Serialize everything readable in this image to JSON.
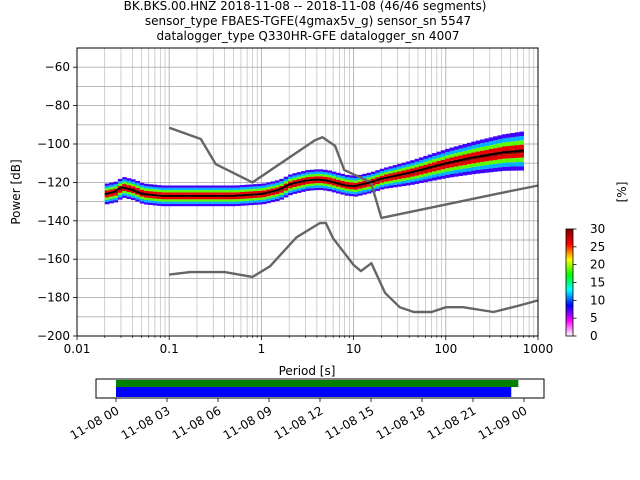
{
  "chart_data": {
    "type": "heatmap",
    "title": [
      "BK.BKS.00.HNZ   2018-11-08 -- 2018-11-08  (46/46 segments)",
      "sensor_type FBAES-TGFE(4gmax5v_g) sensor_sn 5547",
      "datalogger_type Q330HR-GFE datalogger_sn 4007"
    ],
    "xlabel": "Period [s]",
    "ylabel": "Power [dB]",
    "xscale": "log",
    "xlim": [
      0.01,
      1000
    ],
    "ylim": [
      -200,
      -50
    ],
    "grid": true,
    "x_ticks": [
      "0.01",
      "0.1",
      "1",
      "10",
      "100",
      "1000"
    ],
    "y_ticks": [
      "−60",
      "−80",
      "−100",
      "−120",
      "−140",
      "−160",
      "−180",
      "−200"
    ],
    "colorbar": {
      "label": "[%]",
      "min": 0,
      "max": 30,
      "ticks": [
        "0",
        "5",
        "10",
        "15",
        "20",
        "25",
        "30"
      ]
    },
    "noise_models": [
      {
        "kind": "high",
        "points": [
          [
            0.1,
            -91.5
          ],
          [
            0.22,
            -97.4
          ],
          [
            0.32,
            -110.5
          ],
          [
            0.8,
            -120
          ],
          [
            3.8,
            -98
          ],
          [
            4.6,
            -96.5
          ],
          [
            6.3,
            -101
          ],
          [
            7.9,
            -113.5
          ],
          [
            15.4,
            -120
          ],
          [
            20,
            -138.5
          ],
          [
            354.8,
            -126
          ],
          [
            10000,
            -112
          ]
        ]
      },
      {
        "kind": "low",
        "points": [
          [
            0.1,
            -168
          ],
          [
            0.17,
            -166.7
          ],
          [
            0.4,
            -166.7
          ],
          [
            0.8,
            -169.2
          ],
          [
            1.24,
            -163.7
          ],
          [
            2.4,
            -148.6
          ],
          [
            4.3,
            -141.2
          ],
          [
            5.0,
            -141.1
          ],
          [
            6.0,
            -149.1
          ],
          [
            10.0,
            -163.0
          ],
          [
            12.0,
            -166.2
          ],
          [
            15.6,
            -162.1
          ],
          [
            21.9,
            -177.5
          ],
          [
            31.6,
            -185.0
          ],
          [
            45.0,
            -187.5
          ],
          [
            70.0,
            -187.5
          ],
          [
            101.0,
            -185.0
          ],
          [
            154.0,
            -185.0
          ],
          [
            328.0,
            -187.5
          ],
          [
            600.0,
            -184.4
          ],
          [
            10000,
            -168.3
          ]
        ]
      }
    ],
    "mode_curve": [
      [
        0.02,
        -126
      ],
      [
        0.025,
        -125
      ],
      [
        0.03,
        -122.5
      ],
      [
        0.04,
        -124
      ],
      [
        0.05,
        -126
      ],
      [
        0.08,
        -127
      ],
      [
        0.2,
        -127
      ],
      [
        0.5,
        -127
      ],
      [
        1,
        -126
      ],
      [
        1.5,
        -124
      ],
      [
        2,
        -121
      ],
      [
        3,
        -119
      ],
      [
        4,
        -118.5
      ],
      [
        5,
        -119
      ],
      [
        6,
        -120
      ],
      [
        8,
        -121.5
      ],
      [
        10,
        -122
      ],
      [
        15,
        -120
      ],
      [
        20,
        -118
      ],
      [
        40,
        -115
      ],
      [
        100,
        -110
      ],
      [
        200,
        -107
      ],
      [
        400,
        -104.5
      ],
      [
        700,
        -103.5
      ]
    ],
    "time_axis": {
      "tick_labels": [
        "11-08 00",
        "11-08 03",
        "11-08 06",
        "11-08 09",
        "11-08 12",
        "11-08 15",
        "11-08 18",
        "11-08 21",
        "11-09 00"
      ],
      "start": "2018-11-08 00:00",
      "end": "2018-11-09 00:00",
      "data_coverage": [
        "2018-11-08 00:00",
        "2018-11-08 23:40"
      ],
      "segment_coverage": [
        "2018-11-08 00:00",
        "2018-11-08 23:15"
      ],
      "colors": {
        "data": "#008000",
        "segments": "#0000ff"
      }
    },
    "colors": {
      "noise_model": "#666666",
      "mode": "#000000",
      "grid": "#b0b0b0",
      "colormap": [
        "#ffffff",
        "#ff00ff",
        "#0000ff",
        "#00ffff",
        "#00ff00",
        "#ffff00",
        "#ff0000",
        "#800000"
      ]
    }
  }
}
